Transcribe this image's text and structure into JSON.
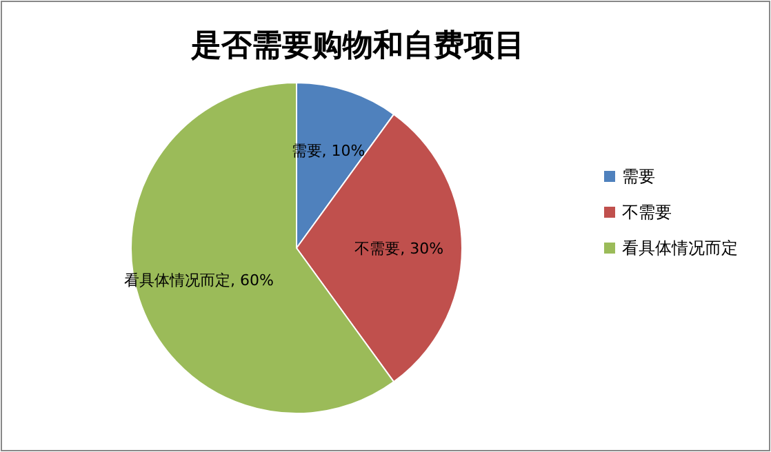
{
  "chart_data": {
    "type": "pie",
    "title": "是否需要购物和自费项目",
    "categories": [
      "需要",
      "不需要",
      "看具体情况而定"
    ],
    "values": [
      10,
      30,
      60
    ],
    "value_labels": [
      "需要, 10%",
      "不需要, 30%",
      "看具体情况而定, 60%"
    ],
    "colors": [
      "#4f81bd",
      "#c0504d",
      "#9bbb59"
    ],
    "legend": "right"
  }
}
